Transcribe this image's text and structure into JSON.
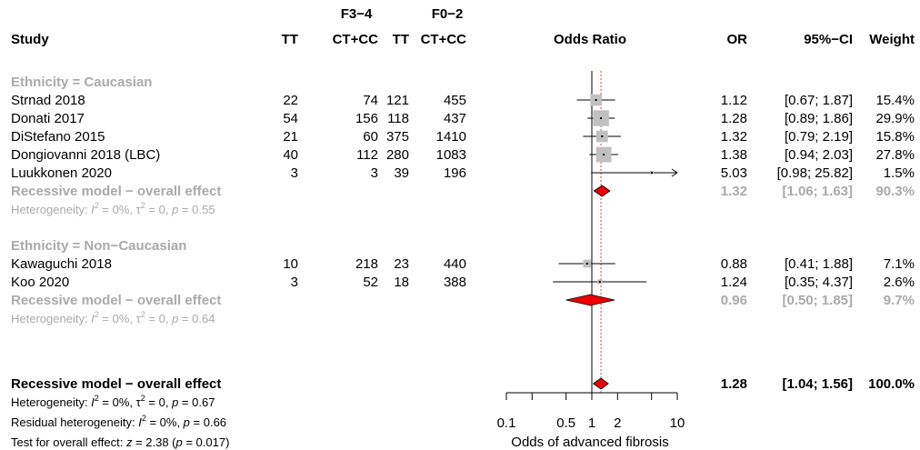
{
  "header": {
    "study": "Study",
    "group_f34": "F3−4",
    "group_f02": "F0−2",
    "tt": "TT",
    "ctcc": "CT+CC",
    "tt2": "TT",
    "ctcc2": "CT+CC",
    "odds_ratio": "Odds Ratio",
    "or": "OR",
    "ci": "95%−CI",
    "weight": "Weight"
  },
  "chart_data": {
    "type": "forest",
    "xlabel": "Odds of advanced fibrosis",
    "x_scale": "log",
    "xlim": [
      0.1,
      10
    ],
    "x_ticks": [
      "0.1",
      "0.5",
      "1",
      "2",
      "10"
    ],
    "reference_line": 1,
    "overall_line": 1.28,
    "groups": [
      {
        "name": "Ethnicity = Caucasian",
        "studies": [
          {
            "study": "Strnad 2018",
            "f34_tt": "22",
            "f34_ctcc": "74",
            "f02_tt": "121",
            "f02_ctcc": "455",
            "or": 1.12,
            "lo": 0.67,
            "hi": 1.87,
            "or_text": "1.12",
            "ci_text": "[0.67; 1.87]",
            "weight": "15.4%"
          },
          {
            "study": "Donati 2017",
            "f34_tt": "54",
            "f34_ctcc": "156",
            "f02_tt": "118",
            "f02_ctcc": "437",
            "or": 1.28,
            "lo": 0.89,
            "hi": 1.86,
            "or_text": "1.28",
            "ci_text": "[0.89; 1.86]",
            "weight": "29.9%"
          },
          {
            "study": "DiStefano 2015",
            "f34_tt": "21",
            "f34_ctcc": "60",
            "f02_tt": "375",
            "f02_ctcc": "1410",
            "or": 1.32,
            "lo": 0.79,
            "hi": 2.19,
            "or_text": "1.32",
            "ci_text": "[0.79; 2.19]",
            "weight": "15.8%"
          },
          {
            "study": "Dongiovanni 2018 (LBC)",
            "f34_tt": "40",
            "f34_ctcc": "112",
            "f02_tt": "280",
            "f02_ctcc": "1083",
            "or": 1.38,
            "lo": 0.94,
            "hi": 2.03,
            "or_text": "1.38",
            "ci_text": "[0.94; 2.03]",
            "weight": "27.8%"
          },
          {
            "study": "Luukkonen 2020",
            "f34_tt": "3",
            "f34_ctcc": "3",
            "f02_tt": "39",
            "f02_ctcc": "196",
            "or": 5.03,
            "lo": 0.98,
            "hi": 25.82,
            "or_text": "5.03",
            "ci_text": "[0.98; 25.82]",
            "weight": "1.5%"
          }
        ],
        "summary": {
          "label": "Recessive model − overall effect",
          "or": 1.32,
          "lo": 1.06,
          "hi": 1.63,
          "or_text": "1.32",
          "ci_text": "[1.06; 1.63]",
          "weight": "90.3%"
        },
        "heterogeneity": {
          "I2": "0%",
          "tau2": "0",
          "p": "0.55"
        }
      },
      {
        "name": "Ethnicity = Non−Caucasian",
        "studies": [
          {
            "study": "Kawaguchi 2018",
            "f34_tt": "10",
            "f34_ctcc": "218",
            "f02_tt": "23",
            "f02_ctcc": "440",
            "or": 0.88,
            "lo": 0.41,
            "hi": 1.88,
            "or_text": "0.88",
            "ci_text": "[0.41; 1.88]",
            "weight": "7.1%"
          },
          {
            "study": "Koo 2020",
            "f34_tt": "3",
            "f34_ctcc": "52",
            "f02_tt": "18",
            "f02_ctcc": "388",
            "or": 1.24,
            "lo": 0.35,
            "hi": 4.37,
            "or_text": "1.24",
            "ci_text": "[0.35; 4.37]",
            "weight": "2.6%"
          }
        ],
        "summary": {
          "label": "Recessive model − overall effect",
          "or": 0.96,
          "lo": 0.5,
          "hi": 1.85,
          "or_text": "0.96",
          "ci_text": "[0.50; 1.85]",
          "weight": "9.7%"
        },
        "heterogeneity": {
          "I2": "0%",
          "tau2": "0",
          "p": "0.64"
        }
      }
    ],
    "overall": {
      "label": "Recessive model − overall effect",
      "or": 1.28,
      "lo": 1.04,
      "hi": 1.56,
      "or_text": "1.28",
      "ci_text": "[1.04; 1.56]",
      "weight": "100.0%",
      "heterogeneity": {
        "I2": "0%",
        "tau2": "0",
        "p": "0.67"
      },
      "residual_heterogeneity": {
        "I2": "0%",
        "p": "0.66"
      },
      "test_overall": {
        "z": "2.38",
        "p": "0.017"
      }
    }
  },
  "colors": {
    "diamond": "#ee0000",
    "square": "#c0c0c0",
    "subgroup_text": "#aaaaaa",
    "overall_line": "#dd4444"
  }
}
